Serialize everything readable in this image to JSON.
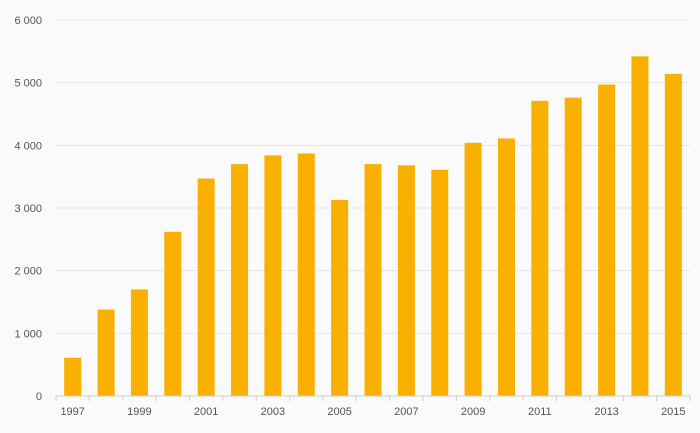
{
  "chart_data": {
    "type": "bar",
    "title": "",
    "xlabel": "",
    "ylabel": "",
    "categories": [
      "1997",
      "1998",
      "1999",
      "2000",
      "2001",
      "2002",
      "2003",
      "2004",
      "2005",
      "2006",
      "2007",
      "2008",
      "2009",
      "2010",
      "2011",
      "2012",
      "2013",
      "2014",
      "2015"
    ],
    "values": [
      610,
      1380,
      1700,
      2620,
      3470,
      3700,
      3840,
      3870,
      3130,
      3700,
      3680,
      3610,
      4040,
      4110,
      4710,
      4760,
      4970,
      5420,
      5140
    ],
    "ylim": [
      0,
      6000
    ],
    "yticks": [
      0,
      1000,
      2000,
      3000,
      4000,
      5000,
      6000
    ],
    "ytick_labels": [
      "0",
      "1 000",
      "2 000",
      "3 000",
      "4 000",
      "5 000",
      "6 000"
    ],
    "xtick_labels": [
      "1997",
      "1999",
      "2001",
      "2003",
      "2005",
      "2007",
      "2009",
      "2011",
      "2013",
      "2015"
    ],
    "grid": true,
    "bar_color": "#f9b000"
  }
}
